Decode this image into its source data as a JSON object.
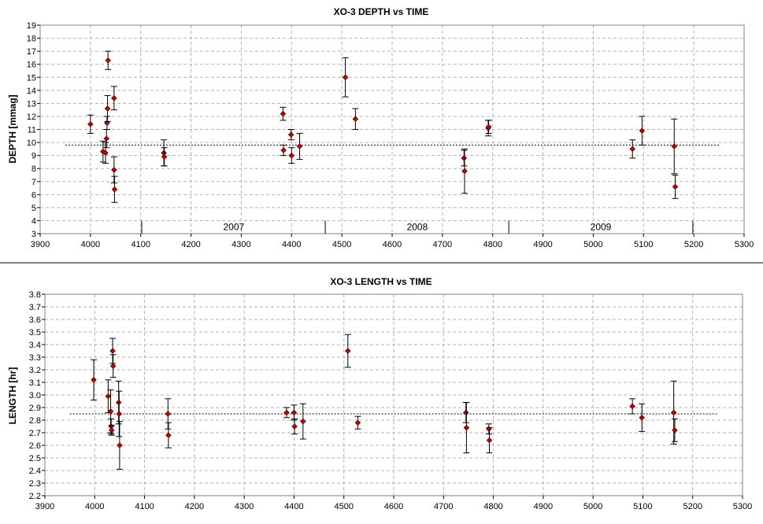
{
  "chart_data": [
    {
      "type": "scatter",
      "title": "XO-3 DEPTH vs TIME",
      "xlabel": "",
      "ylabel": "DEPTH [mmag]",
      "xlim": [
        3900,
        5300
      ],
      "ylim": [
        3,
        19
      ],
      "x_ticks": [
        3900,
        4000,
        4100,
        4200,
        4300,
        4400,
        4500,
        4600,
        4700,
        4800,
        4900,
        5000,
        5100,
        5200,
        5300
      ],
      "y_ticks": [
        3,
        4,
        5,
        6,
        7,
        8,
        9,
        10,
        11,
        12,
        13,
        14,
        15,
        16,
        17,
        18,
        19
      ],
      "grid": true,
      "reference_line": {
        "value": 9.8,
        "x_range": [
          3950,
          5250
        ],
        "style": "dotted"
      },
      "year_labels": [
        {
          "label": "2007",
          "x": 4285
        },
        {
          "label": "2008",
          "x": 4650
        },
        {
          "label": "2009",
          "x": 5015
        }
      ],
      "year_dividers": [
        4102,
        4467,
        4832,
        5198
      ],
      "year_divider_range": [
        3,
        4
      ],
      "points": [
        {
          "x": 4000,
          "y": 11.4,
          "err": 0.7
        },
        {
          "x": 4025,
          "y": 9.3,
          "err": 0.8
        },
        {
          "x": 4030,
          "y": 9.2,
          "err": 0.8
        },
        {
          "x": 4032,
          "y": 10.3,
          "err": 0.7
        },
        {
          "x": 4033,
          "y": 11.5,
          "err": 0.5
        },
        {
          "x": 4034,
          "y": 12.6,
          "err": 1.0
        },
        {
          "x": 4035,
          "y": 16.3,
          "err": 0.7
        },
        {
          "x": 4047,
          "y": 13.4,
          "err": 0.9
        },
        {
          "x": 4047,
          "y": 7.9,
          "err": 1.0
        },
        {
          "x": 4048,
          "y": 6.4,
          "err": 1.0
        },
        {
          "x": 4146,
          "y": 9.2,
          "err": 1.0
        },
        {
          "x": 4147,
          "y": 8.9,
          "err": 0.7
        },
        {
          "x": 4383,
          "y": 12.2,
          "err": 0.5
        },
        {
          "x": 4384,
          "y": 9.4,
          "err": 0.4
        },
        {
          "x": 4399,
          "y": 10.6,
          "err": 0.4
        },
        {
          "x": 4400,
          "y": 9.0,
          "err": 0.6
        },
        {
          "x": 4416,
          "y": 9.7,
          "err": 1.0
        },
        {
          "x": 4507,
          "y": 15.0,
          "err": 1.5
        },
        {
          "x": 4527,
          "y": 11.8,
          "err": 0.8
        },
        {
          "x": 4743,
          "y": 8.8,
          "err": 0.6
        },
        {
          "x": 4744,
          "y": 7.8,
          "err": 1.7
        },
        {
          "x": 4791,
          "y": 11.1,
          "err": 0.6
        },
        {
          "x": 4792,
          "y": 11.2,
          "err": 0.5
        },
        {
          "x": 5078,
          "y": 9.5,
          "err": 0.7
        },
        {
          "x": 5097,
          "y": 10.9,
          "err": 1.1
        },
        {
          "x": 5161,
          "y": 9.7,
          "err": 2.1
        },
        {
          "x": 5163,
          "y": 6.6,
          "err": 0.9
        }
      ]
    },
    {
      "type": "scatter",
      "title": "XO-3 LENGTH vs TIME",
      "xlabel": "",
      "ylabel": "LENGTH [hr]",
      "xlim": [
        3900,
        5300
      ],
      "ylim": [
        2.2,
        3.8
      ],
      "x_ticks": [
        3900,
        4000,
        4100,
        4200,
        4300,
        4400,
        4500,
        4600,
        4700,
        4800,
        4900,
        5000,
        5100,
        5200,
        5300
      ],
      "y_ticks": [
        2.2,
        2.3,
        2.4,
        2.5,
        2.6,
        2.7,
        2.8,
        2.9,
        3.0,
        3.1,
        3.2,
        3.3,
        3.4,
        3.5,
        3.6,
        3.7,
        3.8
      ],
      "grid": true,
      "reference_line": {
        "value": 2.85,
        "x_range": [
          3950,
          5250
        ],
        "style": "dotted"
      },
      "points": [
        {
          "x": 3998,
          "y": 3.12,
          "err": 0.16
        },
        {
          "x": 4027,
          "y": 2.99,
          "err": 0.13
        },
        {
          "x": 4032,
          "y": 2.87,
          "err": 0.17
        },
        {
          "x": 4033,
          "y": 2.75,
          "err": 0.06
        },
        {
          "x": 4034,
          "y": 2.72,
          "err": 0.04
        },
        {
          "x": 4036,
          "y": 3.35,
          "err": 0.1
        },
        {
          "x": 4037,
          "y": 3.23,
          "err": 0.09
        },
        {
          "x": 4048,
          "y": 2.94,
          "err": 0.17
        },
        {
          "x": 4049,
          "y": 2.85,
          "err": 0.18
        },
        {
          "x": 4050,
          "y": 2.6,
          "err": 0.19
        },
        {
          "x": 4147,
          "y": 2.85,
          "err": 0.12
        },
        {
          "x": 4148,
          "y": 2.68,
          "err": 0.1
        },
        {
          "x": 4385,
          "y": 2.86,
          "err": 0.04
        },
        {
          "x": 4400,
          "y": 2.86,
          "err": 0.06
        },
        {
          "x": 4401,
          "y": 2.75,
          "err": 0.06
        },
        {
          "x": 4418,
          "y": 2.79,
          "err": 0.14
        },
        {
          "x": 4508,
          "y": 3.35,
          "err": 0.13
        },
        {
          "x": 4528,
          "y": 2.78,
          "err": 0.05
        },
        {
          "x": 4745,
          "y": 2.86,
          "err": 0.08
        },
        {
          "x": 4746,
          "y": 2.74,
          "err": 0.2
        },
        {
          "x": 4791,
          "y": 2.73,
          "err": 0.04
        },
        {
          "x": 4792,
          "y": 2.64,
          "err": 0.1
        },
        {
          "x": 5079,
          "y": 2.91,
          "err": 0.06
        },
        {
          "x": 5098,
          "y": 2.82,
          "err": 0.11
        },
        {
          "x": 5162,
          "y": 2.86,
          "err": 0.25
        },
        {
          "x": 5164,
          "y": 2.72,
          "err": 0.09
        }
      ]
    }
  ]
}
